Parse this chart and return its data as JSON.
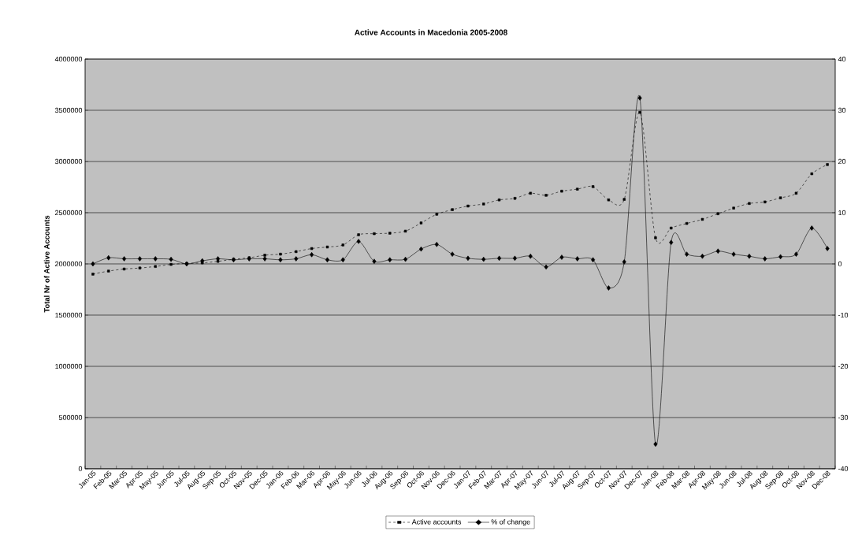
{
  "chart_data": {
    "type": "line",
    "title": "Active Accounts in Macedonia 2005-2008",
    "ylabel": "Total Nr of Active Accounts",
    "categories": [
      "Jan-05",
      "Feb-05",
      "Mar-05",
      "Apr-05",
      "May-05",
      "Jun-05",
      "Jul-05",
      "Aug-05",
      "Sep-05",
      "Oct-05",
      "Nov-05",
      "Dec-05",
      "Jan-06",
      "Feb-06",
      "Mar-06",
      "Apr-06",
      "May-06",
      "Jun-06",
      "Jul-06",
      "Aug-06",
      "Sep-06",
      "Oct-06",
      "Nov-06",
      "Dec-06",
      "Jan-07",
      "Feb-07",
      "Mar-07",
      "Apr-07",
      "May-07",
      "Jun-07",
      "Jul-07",
      "Aug-07",
      "Sep-07",
      "Oct-07",
      "Nov-07",
      "Dec-07",
      "Jan-08",
      "Feb-08",
      "Mar-08",
      "Apr-08",
      "May-08",
      "Jun-08",
      "Jul-08",
      "Aug-08",
      "Sep-08",
      "Oct-08",
      "Nov-08",
      "Dec-08"
    ],
    "series": [
      {
        "name": "Active accounts",
        "color": "#000000",
        "marker": "square",
        "line_style": "dashed",
        "values": [
          1900000,
          1930000,
          1950000,
          1960000,
          1975000,
          1995000,
          2005000,
          2010000,
          2025000,
          2045000,
          2060000,
          2085000,
          2095000,
          2120000,
          2150000,
          2165000,
          2185000,
          2285000,
          2295000,
          2300000,
          2320000,
          2400000,
          2485000,
          2530000,
          2565000,
          2585000,
          2625000,
          2640000,
          2690000,
          2670000,
          2710000,
          2730000,
          2755000,
          2625000,
          2630000,
          3480000,
          2255000,
          2350000,
          2395000,
          2435000,
          2490000,
          2545000,
          2590000,
          2605000,
          2645000,
          2690000,
          2880000,
          2970000
        ]
      },
      {
        "name": "% of change",
        "color": "#000000",
        "marker": "diamond",
        "line_style": "solid",
        "axis": "y2",
        "values": [
          0,
          1.2,
          1.0,
          1.0,
          1.0,
          0.9,
          0,
          0.6,
          1.0,
          0.8,
          1.0,
          1.0,
          0.8,
          1.0,
          1.8,
          0.8,
          0.8,
          4.4,
          0.5,
          0.8,
          0.9,
          2.9,
          3.8,
          1.9,
          1.1,
          0.9,
          1.1,
          1.1,
          1.5,
          -0.6,
          1.3,
          1.0,
          0.8,
          -4.7,
          0.4,
          32.4,
          -35.2,
          4.2,
          1.9,
          1.5,
          2.5,
          1.9,
          1.5,
          1.0,
          1.4,
          1.9,
          7.0,
          3.0
        ]
      }
    ],
    "ylim": [
      0,
      4000000
    ],
    "yticks": [
      0,
      500000,
      1000000,
      1500000,
      2000000,
      2500000,
      3000000,
      3500000,
      4000000
    ],
    "y2lim": [
      -40,
      40
    ],
    "y2ticks": [
      -40,
      -30,
      -20,
      -10,
      0,
      10,
      20,
      30,
      40
    ],
    "grid": "y",
    "legend": "bottom"
  }
}
